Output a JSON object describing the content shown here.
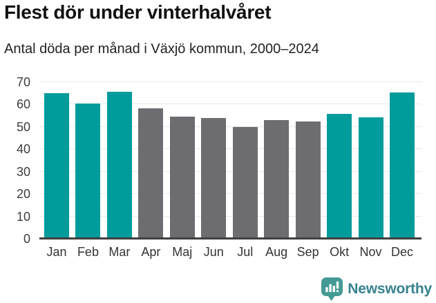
{
  "chart_data": {
    "type": "bar",
    "title": "Flest dör under vinterhalvåret",
    "subtitle": "Antal döda per månad i Växjö kommun, 2000–2024",
    "categories": [
      "Jan",
      "Feb",
      "Mar",
      "Apr",
      "Maj",
      "Jun",
      "Jul",
      "Aug",
      "Sep",
      "Okt",
      "Nov",
      "Dec"
    ],
    "values": [
      65,
      60.6,
      65.6,
      58.4,
      54.5,
      54,
      50,
      53.1,
      52.4,
      55.8,
      54.2,
      65.5
    ],
    "highlighted": [
      true,
      true,
      true,
      false,
      false,
      false,
      false,
      false,
      false,
      true,
      true,
      true
    ],
    "xlabel": "",
    "ylabel": "",
    "ylim": [
      0,
      70
    ],
    "y_ticks": [
      0,
      10,
      20,
      30,
      40,
      50,
      60,
      70
    ],
    "grid": true,
    "legend": "none",
    "palette": {
      "highlight_color": "#009b9b",
      "base_color": "#6c6c71",
      "gridline_color": "#e8e8e8",
      "axis_color": "#3f3f3f"
    }
  },
  "footer": {
    "logo_text": "Newsworthy",
    "logo_icon": "speech-bubble-bar-chart-icon",
    "logo_icon_color": "#449a94",
    "logo_text_color": "#37828e"
  }
}
